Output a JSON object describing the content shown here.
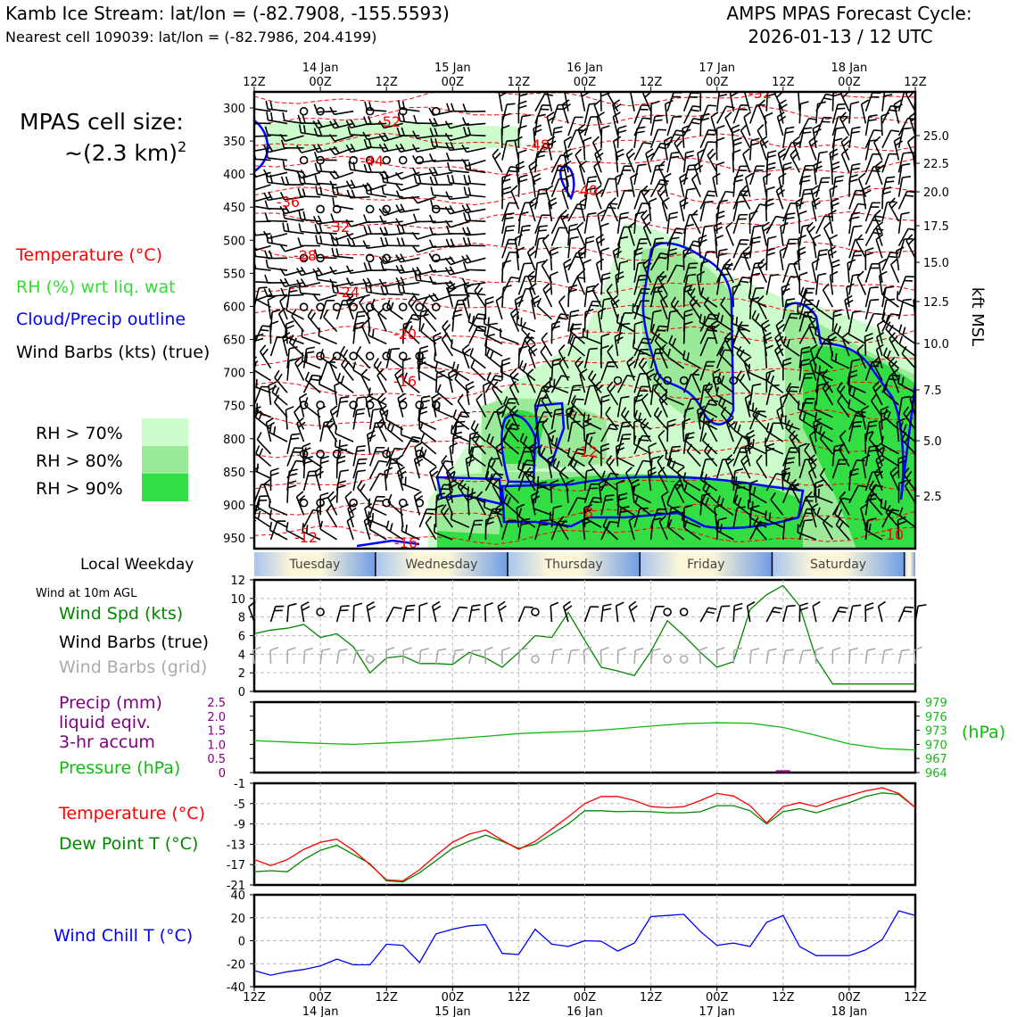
{
  "header": {
    "title_left": "Kamb Ice Stream: lat/lon = (-82.7908, -155.5593)",
    "subtitle_left": "Nearest cell 109039: lat/lon = (-82.7986, 204.4199)",
    "title_right_1": "AMPS MPAS Forecast Cycle:",
    "title_right_2": "2026-01-13 / 12 UTC"
  },
  "legend": {
    "cell_size_line1": "MPAS cell size:",
    "cell_size_line2": "~(2.3 km)",
    "cell_size_sup": "2",
    "temperature": "Temperature (°C)",
    "rh": "RH (%) wrt liq. wat",
    "cloud": "Cloud/Precip outline",
    "wind": "Wind Barbs (kts) (true)",
    "rh70": "RH > 70%",
    "rh80": "RH > 80%",
    "rh90": "RH > 90%",
    "weekday_label": "Local Weekday",
    "wind10m_label": "Wind at 10m AGL",
    "wind_spd": "Wind Spd (kts)",
    "wind_barbs_true": "Wind Barbs (true)",
    "wind_barbs_grid": "Wind Barbs (grid)",
    "precip_1": "Precip (mm)",
    "precip_2": "liquid eqiv.",
    "precip_3": "3-hr accum",
    "pressure": "Pressure (hPa)",
    "temp2": "Temperature (°C)",
    "dewpoint": "Dew Point T (°C)",
    "windchill": "Wind Chill T (°C)",
    "kft_label": "kft MSL",
    "hpa_label": "(hPa)"
  },
  "colors": {
    "temperature": "#ff0000",
    "rh": "#33dd33",
    "rh70": "#ccfccc",
    "rh80": "#9aea9a",
    "rh90": "#33dd44",
    "cloud": "#0000ff",
    "wind_spd": "#008800",
    "dewpoint": "#008800",
    "pressure": "#11bb11",
    "precip": "#800080",
    "grid_barbs": "#aaaaaa",
    "windchill": "#0000ff"
  },
  "time_axis": {
    "top_day_labels": [
      "14 Jan",
      "15 Jan",
      "16 Jan",
      "17 Jan",
      "18 Jan"
    ],
    "top_hour_labels": [
      "12Z",
      "00Z",
      "12Z",
      "00Z",
      "12Z",
      "00Z",
      "12Z",
      "00Z",
      "12Z",
      "00Z",
      "12Z"
    ],
    "bottom_hour_labels": [
      "12Z",
      "00Z",
      "12Z",
      "00Z",
      "12Z",
      "00Z",
      "12Z",
      "00Z",
      "12Z",
      "00Z",
      "12Z"
    ],
    "bottom_day_labels": [
      "14 Jan",
      "15 Jan",
      "16 Jan",
      "17 Jan",
      "18 Jan"
    ],
    "weekdays": [
      "Tuesday",
      "Wednesday",
      "Thursday",
      "Friday",
      "Saturday"
    ],
    "forecast_hours": [
      0,
      120
    ]
  },
  "chart_data": [
    {
      "type": "heatmap",
      "name": "vertical cross-section",
      "y_ticks_hpa": [
        300,
        350,
        400,
        450,
        500,
        550,
        600,
        650,
        700,
        750,
        800,
        850,
        900,
        950
      ],
      "right_ticks_kft": [
        "25.0",
        "22.5",
        "20.0",
        "17.5",
        "15.0",
        "12.5",
        "10.0",
        "7.5",
        "5.0",
        "2.5"
      ],
      "temperature_contour_labels": [
        "-52",
        "-52",
        "-48",
        "-44",
        "-40",
        "-36",
        "-32",
        "-28",
        "-24",
        "-20",
        "-16",
        "-12",
        "-8",
        "-12",
        "-16",
        "-10"
      ]
    },
    {
      "type": "line",
      "name": "Wind Spd (kts)",
      "x_hours": [
        0,
        3,
        6,
        9,
        12,
        15,
        18,
        21,
        24,
        27,
        30,
        33,
        36,
        39,
        42,
        45,
        48,
        51,
        54,
        57,
        60,
        63,
        66,
        69,
        72,
        75,
        78,
        81,
        84,
        87,
        90,
        93,
        96,
        99,
        102,
        105,
        108,
        111,
        114,
        117,
        120
      ],
      "values": [
        6.2,
        6.6,
        6.8,
        7.2,
        5.8,
        6.2,
        4.8,
        2.0,
        3.6,
        3.8,
        3.0,
        3.0,
        2.9,
        4.2,
        3.6,
        2.6,
        4.2,
        6.0,
        5.8,
        8.5,
        5.5,
        2.6,
        2.2,
        1.7,
        4.3,
        7.6,
        6.0,
        4.2,
        2.6,
        3.2,
        8.8,
        10.4,
        11.4,
        9.2,
        3.5,
        0.8,
        0.8,
        0.8,
        0.8,
        0.8,
        0.8
      ],
      "ylim": [
        0,
        12
      ],
      "yticks": [
        0,
        2,
        4,
        6,
        8,
        10,
        12
      ]
    },
    {
      "type": "line",
      "name": "Pressure (hPa)",
      "x_hours": [
        0,
        6,
        12,
        18,
        24,
        30,
        36,
        42,
        48,
        54,
        60,
        66,
        72,
        78,
        84,
        90,
        96,
        102,
        108,
        114,
        120
      ],
      "values": [
        970.8,
        970.5,
        970.2,
        970.0,
        970.3,
        970.6,
        971.2,
        971.7,
        972.3,
        972.6,
        972.8,
        973.3,
        973.9,
        974.4,
        974.6,
        974.5,
        973.6,
        971.9,
        970.1,
        969.1,
        968.8
      ],
      "ylim": [
        964,
        979
      ],
      "left_ticks": [
        "0",
        "0.5",
        "1.0",
        "1.5",
        "2.0",
        "2.5"
      ],
      "right_ticks": [
        "964",
        "967",
        "970",
        "973",
        "976",
        "979"
      ],
      "precip_mm": [
        0,
        0,
        0,
        0,
        0,
        0,
        0,
        0,
        0,
        0,
        0,
        0,
        0,
        0,
        0,
        0,
        0.05,
        0,
        0,
        0,
        0
      ]
    },
    {
      "type": "line",
      "name": "Temperature / Dew Point",
      "x_hours": [
        0,
        3,
        6,
        9,
        12,
        15,
        18,
        21,
        24,
        27,
        30,
        33,
        36,
        39,
        42,
        45,
        48,
        51,
        54,
        57,
        60,
        63,
        66,
        69,
        72,
        75,
        78,
        81,
        84,
        87,
        90,
        93,
        96,
        99,
        102,
        105,
        108,
        111,
        114,
        117,
        120
      ],
      "series": [
        {
          "name": "Temperature (°C)",
          "values": [
            -16,
            -17.2,
            -16,
            -14,
            -12.6,
            -12,
            -14.2,
            -17,
            -20,
            -20.2,
            -18,
            -15.2,
            -12.6,
            -11,
            -10.2,
            -12.2,
            -14,
            -12.4,
            -10,
            -7.6,
            -5,
            -3.6,
            -3.6,
            -4.4,
            -5.6,
            -5.8,
            -5.6,
            -4.4,
            -3,
            -3.5,
            -5.4,
            -8.8,
            -5.6,
            -4.8,
            -5.6,
            -4.4,
            -3.4,
            -2.5,
            -1.9,
            -3,
            -5.8
          ]
        },
        {
          "name": "Dew Point T (°C)",
          "values": [
            -18.4,
            -18.2,
            -18.4,
            -16,
            -14.2,
            -13.2,
            -15,
            -16.8,
            -20.2,
            -20.4,
            -18.6,
            -16.2,
            -13.8,
            -12.4,
            -11.2,
            -12.4,
            -13.8,
            -13,
            -11,
            -9,
            -6.4,
            -6.4,
            -6.6,
            -6.5,
            -6.6,
            -6.8,
            -6.8,
            -6.6,
            -5.4,
            -5.4,
            -6.4,
            -9,
            -6.6,
            -6,
            -6.8,
            -5.8,
            -4.8,
            -3.6,
            -2.9,
            -3.2,
            -5.8
          ]
        }
      ],
      "ylim": [
        -21,
        -1
      ],
      "yticks": [
        -21,
        -17,
        -13,
        -9,
        -5,
        -1
      ]
    },
    {
      "type": "line",
      "name": "Wind Chill T (°C)",
      "x_hours": [
        0,
        3,
        6,
        9,
        12,
        15,
        18,
        21,
        24,
        27,
        30,
        33,
        36,
        39,
        42,
        45,
        48,
        51,
        54,
        57,
        60,
        63,
        66,
        69,
        72,
        75,
        78,
        81,
        84,
        87,
        90,
        93,
        96,
        99,
        102,
        105,
        108,
        111,
        114,
        117,
        120
      ],
      "values": [
        -26,
        -30,
        -27,
        -25,
        -22,
        -16,
        -21,
        -21,
        -3,
        -4,
        -19,
        6,
        10,
        13,
        14,
        -11,
        -12,
        10,
        -3,
        -5,
        0,
        -0.5,
        -9,
        -2,
        21,
        22,
        23,
        8,
        -4,
        -2,
        -5,
        16,
        22,
        -5,
        -13,
        -13,
        -13,
        -8,
        1,
        26,
        22
      ],
      "ylim": [
        -40,
        40
      ],
      "yticks": [
        -40,
        -20,
        0,
        20,
        40
      ]
    }
  ]
}
